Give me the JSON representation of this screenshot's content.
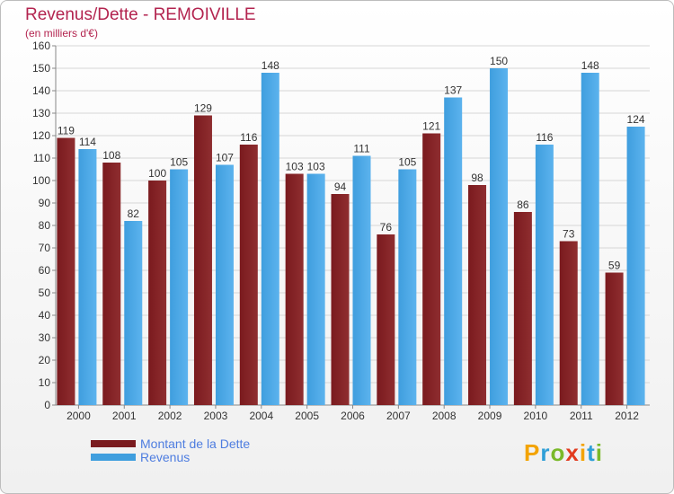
{
  "header": {
    "title": "Revenus/Dette - REMOIVILLE",
    "subtitle": "(en milliers d'€)"
  },
  "colors": {
    "debt": "#7a1a1e",
    "debt_light": "#8f2e30",
    "revenue": "#3f9ede",
    "revenue_light": "#5cb3ee",
    "title": "#b3244f",
    "legend_text": "#4e7de0"
  },
  "chart_data": {
    "type": "bar",
    "title": "Revenus/Dette - REMOIVILLE",
    "ylabel": "(en milliers d'€)",
    "xlabel": "",
    "categories": [
      "2000",
      "2001",
      "2002",
      "2003",
      "2004",
      "2005",
      "2006",
      "2007",
      "2008",
      "2009",
      "2010",
      "2011",
      "2012"
    ],
    "series": [
      {
        "name": "Montant de la Dette",
        "values": [
          119,
          108,
          100,
          129,
          116,
          103,
          94,
          76,
          121,
          98,
          86,
          73,
          59
        ]
      },
      {
        "name": "Revenus",
        "values": [
          114,
          82,
          105,
          107,
          148,
          103,
          111,
          105,
          137,
          150,
          116,
          148,
          124
        ]
      }
    ],
    "ylim": [
      0,
      160
    ],
    "yticks": [
      0,
      10,
      20,
      30,
      40,
      50,
      60,
      70,
      80,
      90,
      100,
      110,
      120,
      130,
      140,
      150,
      160
    ],
    "grid": true,
    "legend": "bottom-left"
  },
  "legend": {
    "items": [
      {
        "label": "Montant de la Dette",
        "color": "#7a1a1e"
      },
      {
        "label": "Revenus",
        "color": "#3f9ede"
      }
    ]
  },
  "logo": {
    "letters": [
      "P",
      "r",
      "o",
      "x",
      "i",
      "t",
      "i"
    ],
    "colors": [
      "#f3a300",
      "#2f9fd7",
      "#7ab929",
      "#e23b1f",
      "#f3a300",
      "#2f9fd7",
      "#7ab929"
    ]
  }
}
